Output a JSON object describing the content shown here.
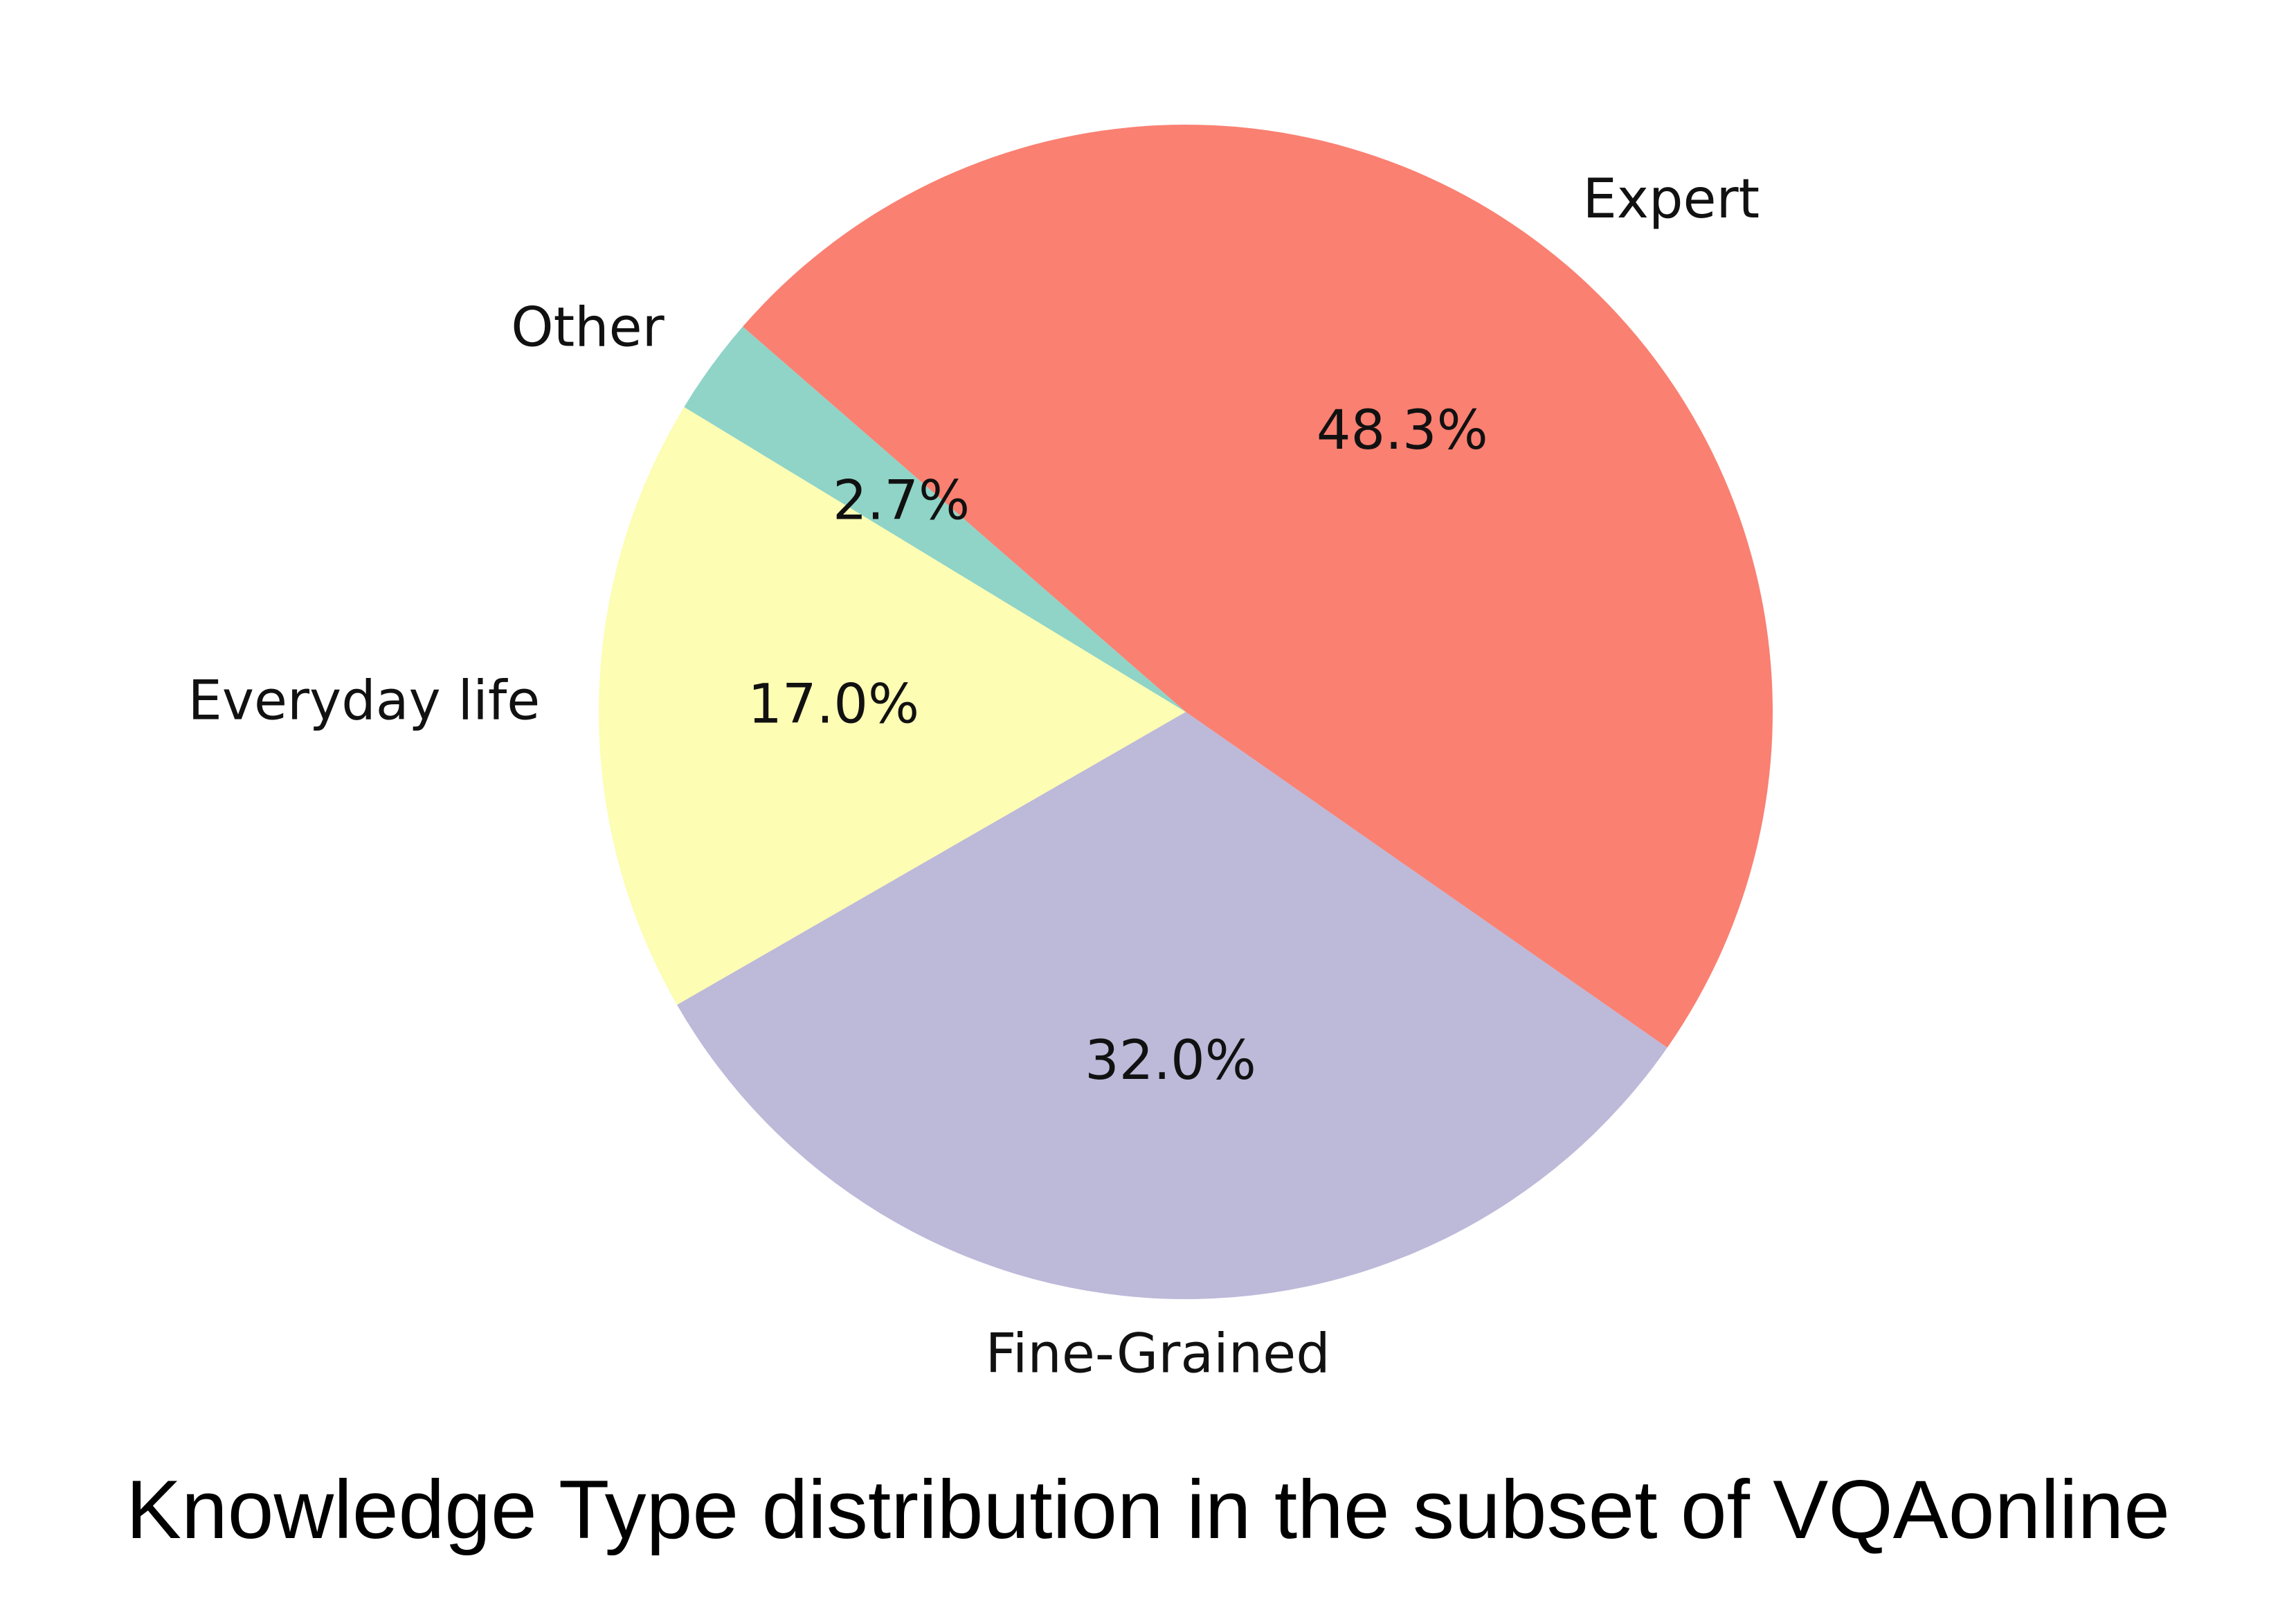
{
  "chart_data": {
    "type": "pie",
    "title": "Knowledge Type distribution in the subset of VQAonline",
    "slices": [
      {
        "label": "Expert",
        "value": 48.3,
        "pct_label": "48.3%",
        "color": "#fa8072"
      },
      {
        "label": "Fine-Grained",
        "value": 32.0,
        "pct_label": "32.0%",
        "color": "#bdb9d9"
      },
      {
        "label": "Everyday life",
        "value": 17.0,
        "pct_label": "17.0%",
        "color": "#fdfdb3"
      },
      {
        "label": "Other",
        "value": 2.7,
        "pct_label": "2.7%",
        "color": "#8fd4c7"
      }
    ],
    "start_angle_deg": 139,
    "direction": "clockwise",
    "legend": "none"
  }
}
